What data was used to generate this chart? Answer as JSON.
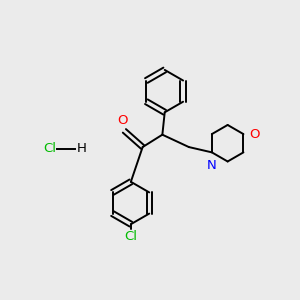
{
  "background_color": "#ebebeb",
  "bond_color": "#000000",
  "atom_colors": {
    "O": "#ff0000",
    "N": "#0000ff",
    "Cl": "#00bb00"
  },
  "figsize": [
    3.0,
    3.0
  ],
  "dpi": 100,
  "bond_lw": 1.4,
  "font_size": 9.5
}
